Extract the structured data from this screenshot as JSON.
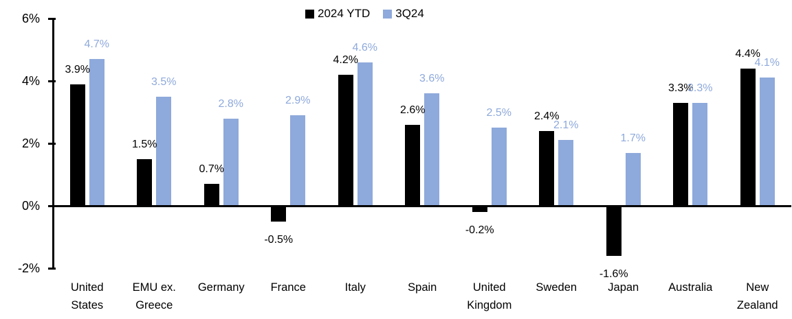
{
  "chart_data": {
    "type": "bar",
    "title": "",
    "xlabel": "",
    "ylabel": "",
    "background": "#FFFFFF",
    "grid": false,
    "categories": [
      "United States",
      "EMU ex. Greece",
      "Germany",
      "France",
      "Italy",
      "Spain",
      "United Kingdom",
      "Sweden",
      "Japan",
      "Australia",
      "New Zealand"
    ],
    "category_label_lines": [
      [
        "United",
        "States"
      ],
      [
        "EMU ex.",
        "Greece"
      ],
      [
        "Germany"
      ],
      [
        "France"
      ],
      [
        "Italy"
      ],
      [
        "Spain"
      ],
      [
        "United",
        "Kingdom"
      ],
      [
        "Sweden"
      ],
      [
        "Japan"
      ],
      [
        "Australia"
      ],
      [
        "New",
        "Zealand"
      ]
    ],
    "series": [
      {
        "name": "2024 YTD",
        "color": "#000000",
        "values": [
          3.9,
          1.5,
          0.7,
          -0.5,
          4.2,
          2.6,
          -0.2,
          2.4,
          -1.6,
          3.3,
          4.4
        ],
        "labels": [
          "3.9%",
          "1.5%",
          "0.7%",
          "-0.5%",
          "4.2%",
          "2.6%",
          "-0.2%",
          "2.4%",
          "-1.6%",
          "3.3%",
          "4.4%"
        ]
      },
      {
        "name": "3Q24",
        "color": "#8EA9DB",
        "values": [
          4.7,
          3.5,
          2.8,
          2.9,
          4.6,
          3.6,
          2.5,
          2.1,
          1.7,
          3.3,
          4.1
        ],
        "labels": [
          "4.7%",
          "3.5%",
          "2.8%",
          "2.9%",
          "4.6%",
          "3.6%",
          "2.5%",
          "2.1%",
          "1.7%",
          "3.3%",
          "4.1%"
        ]
      }
    ],
    "y_axis": {
      "min": -2,
      "max": 6,
      "ticks": [
        {
          "value": 6,
          "label": "6%"
        },
        {
          "value": 4,
          "label": "4%"
        },
        {
          "value": 2,
          "label": "2%"
        },
        {
          "value": 0,
          "label": "0%"
        },
        {
          "value": -2,
          "label": "-2%"
        }
      ]
    },
    "legend": {
      "position": "top-center",
      "entries": [
        "2024 YTD",
        "3Q24"
      ]
    }
  }
}
